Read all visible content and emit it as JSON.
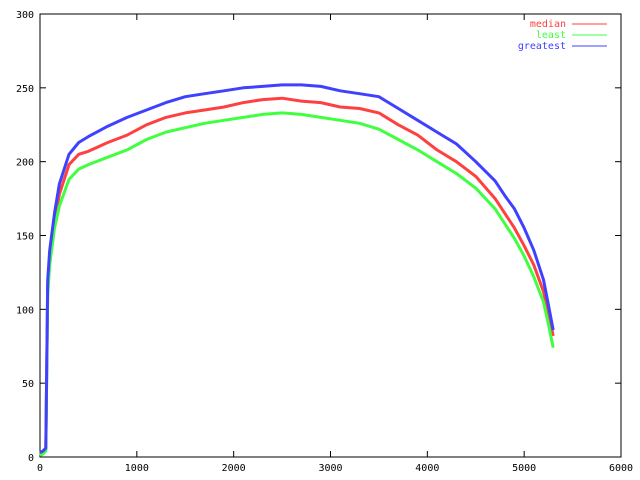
{
  "chart_data": {
    "type": "line",
    "title": "",
    "xlabel": "",
    "ylabel": "",
    "xlim": [
      0,
      6000
    ],
    "ylim": [
      0,
      300
    ],
    "x_ticks": [
      0,
      1000,
      2000,
      3000,
      4000,
      5000,
      6000
    ],
    "y_ticks": [
      0,
      50,
      100,
      150,
      200,
      250,
      300
    ],
    "x_tick_labels": [
      "0",
      "1000",
      "2000",
      "3000",
      "4000",
      "5000",
      "6000"
    ],
    "y_tick_labels": [
      "0",
      "50",
      "100",
      "150",
      "200",
      "250",
      "300"
    ],
    "grid": false,
    "legend_position": "top-right",
    "legend": [
      "median",
      "least",
      "greatest"
    ],
    "series": [
      {
        "name": "median",
        "color": "#ff4040",
        "x": [
          0,
          30,
          60,
          80,
          100,
          150,
          200,
          300,
          400,
          500,
          700,
          900,
          1100,
          1300,
          1500,
          1700,
          1900,
          2100,
          2300,
          2500,
          2700,
          2900,
          3100,
          3300,
          3500,
          3700,
          3900,
          4100,
          4300,
          4500,
          4700,
          4800,
          4900,
          5000,
          5100,
          5200,
          5250,
          5300
        ],
        "y": [
          2,
          3,
          5,
          115,
          135,
          160,
          178,
          198,
          205,
          207,
          213,
          218,
          225,
          230,
          233,
          235,
          237,
          240,
          242,
          243,
          241,
          240,
          237,
          236,
          233,
          225,
          218,
          208,
          200,
          190,
          175,
          165,
          155,
          143,
          130,
          112,
          98,
          82
        ]
      },
      {
        "name": "least",
        "color": "#40ff40",
        "x": [
          0,
          30,
          60,
          80,
          100,
          150,
          200,
          300,
          400,
          500,
          700,
          900,
          1100,
          1300,
          1500,
          1700,
          1900,
          2100,
          2300,
          2500,
          2700,
          2900,
          3100,
          3300,
          3500,
          3700,
          3900,
          4100,
          4300,
          4500,
          4700,
          4800,
          4900,
          5000,
          5100,
          5200,
          5250,
          5300
        ],
        "y": [
          1,
          2,
          4,
          110,
          130,
          155,
          170,
          188,
          195,
          198,
          203,
          208,
          215,
          220,
          223,
          226,
          228,
          230,
          232,
          233,
          232,
          230,
          228,
          226,
          222,
          215,
          208,
          200,
          192,
          182,
          168,
          158,
          148,
          136,
          122,
          105,
          90,
          74
        ]
      },
      {
        "name": "greatest",
        "color": "#4040ff",
        "x": [
          0,
          30,
          60,
          80,
          100,
          150,
          200,
          300,
          400,
          500,
          700,
          900,
          1100,
          1300,
          1500,
          1700,
          1900,
          2100,
          2300,
          2500,
          2700,
          2900,
          3100,
          3300,
          3500,
          3700,
          3900,
          4100,
          4300,
          4500,
          4700,
          4800,
          4900,
          5000,
          5100,
          5200,
          5250,
          5300
        ],
        "y": [
          3,
          4,
          6,
          120,
          140,
          165,
          185,
          205,
          213,
          217,
          224,
          230,
          235,
          240,
          244,
          246,
          248,
          250,
          251,
          252,
          252,
          251,
          248,
          246,
          244,
          236,
          228,
          220,
          212,
          200,
          187,
          177,
          168,
          155,
          140,
          120,
          103,
          86
        ]
      }
    ]
  }
}
